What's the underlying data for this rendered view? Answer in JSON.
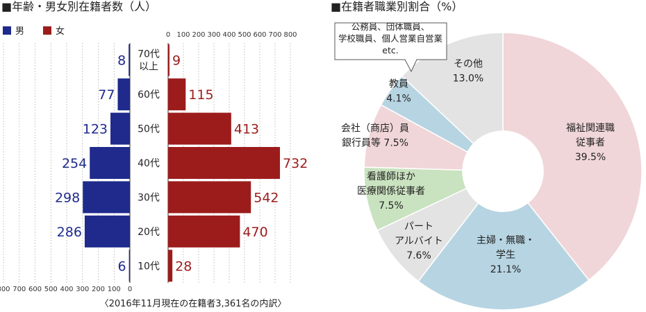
{
  "chart_data": [
    {
      "type": "bar",
      "orientation": "horizontal",
      "layout": "population-pyramid",
      "title": "■年齢・男女別在籍者数（人）",
      "categories": [
        "70代\n以上",
        "60代",
        "50代",
        "40代",
        "30代",
        "20代",
        "10代"
      ],
      "series": [
        {
          "name": "男",
          "color": "#1f2a8c",
          "values": [
            8,
            77,
            123,
            254,
            298,
            286,
            6
          ]
        },
        {
          "name": "女",
          "color": "#9c1c1c",
          "values": [
            9,
            115,
            413,
            732,
            542,
            470,
            28
          ]
        }
      ],
      "xlim": [
        0,
        800
      ],
      "ticks": [
        "0",
        "100",
        "200",
        "300",
        "400",
        "500",
        "600",
        "700",
        "800"
      ],
      "ticks_left": [
        "800",
        "700",
        "600",
        "500",
        "400",
        "300",
        "200",
        "100",
        "0"
      ],
      "legend": [
        "男",
        "女"
      ],
      "footnote": "〈2016年11月現在の在籍者3,361名の内訳〉"
    },
    {
      "type": "pie",
      "donut": true,
      "title": "■在籍者職業別割合（%）",
      "slices": [
        {
          "label": "福祉関連職\n従事者\n39.5%",
          "value": 39.5,
          "color": "#f0d6d9"
        },
        {
          "label": "主婦・無職・\n学生\n21.1%",
          "value": 21.1,
          "color": "#b7d4e2"
        },
        {
          "label": "パート\nアルバイト\n7.6%",
          "value": 7.6,
          "color": "#e3e3e3"
        },
        {
          "label": "看護師ほか\n医療関係従事者\n7.5%",
          "value": 7.5,
          "color": "#c9e2bf"
        },
        {
          "label": "会社（商店）員\n銀行員等 7.5%",
          "value": 7.5,
          "color": "#f0d6d9"
        },
        {
          "label": "教員\n4.1%",
          "value": 4.1,
          "color": "#b7d4e2"
        },
        {
          "label": "その他\n13.0%",
          "value": 13.0,
          "color": "#e3e3e3"
        }
      ],
      "callout": "公務員、団体職員、\n学校職員、個人営業自営業\netc."
    }
  ]
}
